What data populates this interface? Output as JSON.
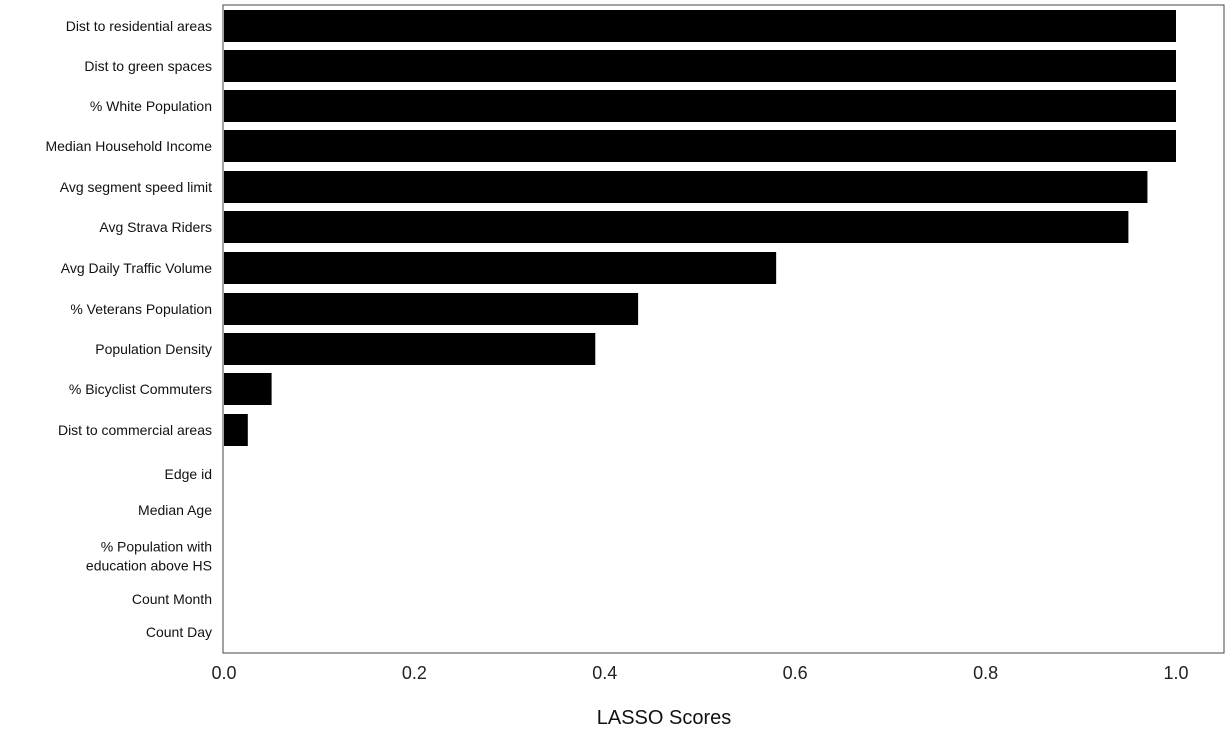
{
  "chart_data": {
    "type": "bar",
    "orientation": "horizontal",
    "xlabel": "LASSO Scores",
    "ylabel": "",
    "xlim": [
      0.0,
      1.05
    ],
    "xticks": [
      "0.0",
      "0.2",
      "0.4",
      "0.6",
      "0.8",
      "1.0"
    ],
    "xtick_values": [
      0.0,
      0.2,
      0.4,
      0.6,
      0.8,
      1.0
    ],
    "grid": false,
    "bar_color": "#000000",
    "categories": [
      [
        "Dist to residential areas"
      ],
      [
        "Dist to green spaces"
      ],
      [
        "% White Population"
      ],
      [
        "Median Household Income"
      ],
      [
        "Avg segment speed limit"
      ],
      [
        "Avg Strava Riders"
      ],
      [
        "Avg Daily Traffic Volume"
      ],
      [
        "% Veterans Population"
      ],
      [
        "Population Density"
      ],
      [
        "% Bicyclist Commuters"
      ],
      [
        "Dist to commercial areas"
      ],
      [
        "Edge id"
      ],
      [
        "Median Age"
      ],
      [
        "% Population with",
        "education above HS"
      ],
      [
        "Count Month"
      ],
      [
        "Count Day"
      ]
    ],
    "values": [
      1.0,
      1.0,
      1.0,
      1.0,
      0.97,
      0.95,
      0.58,
      0.435,
      0.39,
      0.05,
      0.025,
      0,
      0,
      0,
      0,
      0
    ]
  }
}
